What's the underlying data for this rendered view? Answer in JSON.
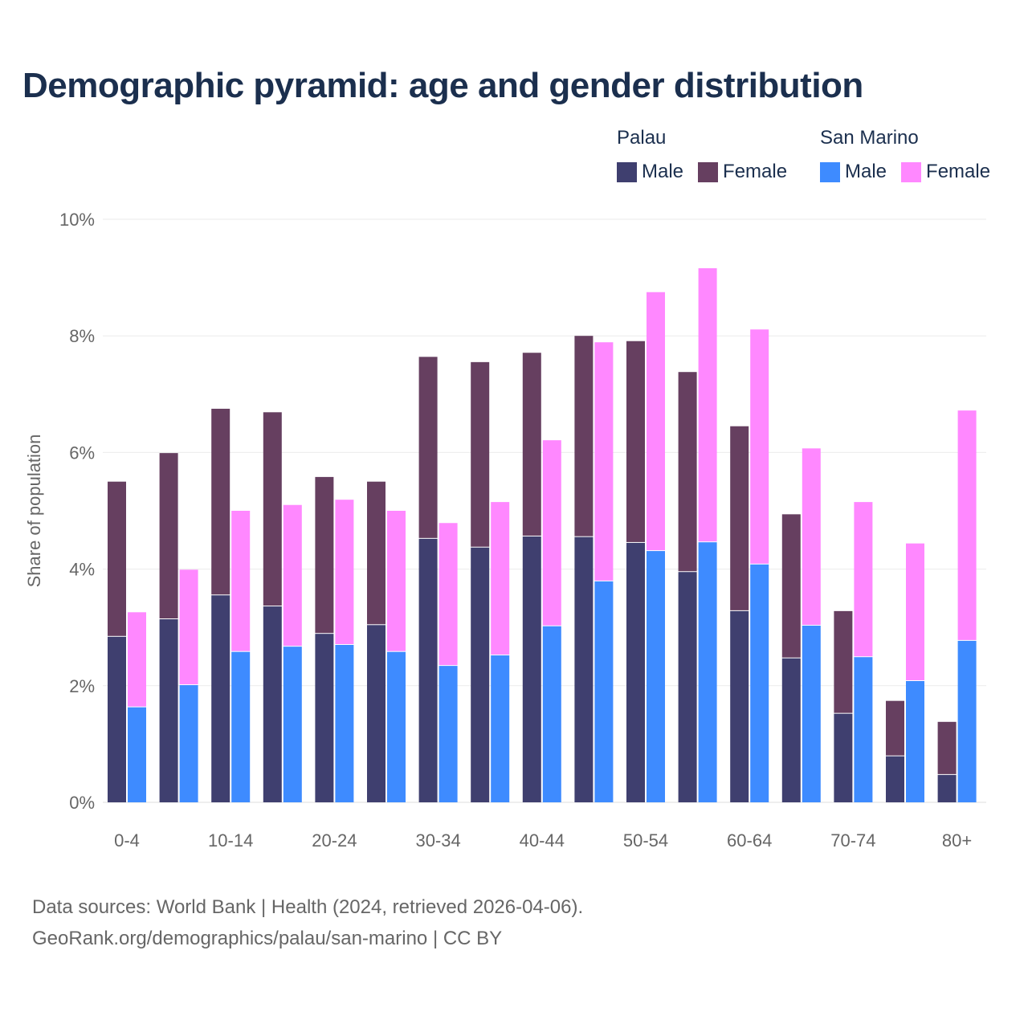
{
  "title": "Demographic pyramid: age and gender distribution",
  "legend": [
    {
      "country": "Palau",
      "items": [
        {
          "label": "Male",
          "color": "#3f3f6f"
        },
        {
          "label": "Female",
          "color": "#663f60"
        }
      ]
    },
    {
      "country": "San Marino",
      "items": [
        {
          "label": "Male",
          "color": "#3e8bff"
        },
        {
          "label": "Female",
          "color": "#ff88ff"
        }
      ]
    }
  ],
  "footer": {
    "line1": "Data sources: World Bank | Health (2024, retrieved 2026-04-06).",
    "line2": "GeoRank.org/demographics/palau/san-marino | CC BY"
  },
  "chart_data": {
    "type": "bar",
    "stacked": true,
    "ylabel": "Share of population",
    "ylim": [
      0,
      10
    ],
    "yticks": [
      0,
      2,
      4,
      6,
      8,
      10
    ],
    "ytick_labels": [
      "0%",
      "2%",
      "4%",
      "6%",
      "8%",
      "10%"
    ],
    "categories": [
      "0-4",
      "5-9",
      "10-14",
      "15-19",
      "20-24",
      "25-29",
      "30-34",
      "35-39",
      "40-44",
      "45-49",
      "50-54",
      "55-59",
      "60-64",
      "65-69",
      "70-74",
      "75-79",
      "80+"
    ],
    "xtick_labels": [
      "0-4",
      "",
      "10-14",
      "",
      "20-24",
      "",
      "30-34",
      "",
      "40-44",
      "",
      "50-54",
      "",
      "60-64",
      "",
      "70-74",
      "",
      "80+"
    ],
    "series": [
      {
        "name": "Palau Male",
        "color": "#3f3f6f",
        "stack": "Palau",
        "values": [
          2.84,
          3.14,
          3.55,
          3.36,
          2.89,
          3.04,
          4.52,
          4.37,
          4.56,
          4.55,
          4.45,
          3.95,
          3.28,
          2.47,
          1.52,
          0.79,
          0.47
        ]
      },
      {
        "name": "Palau Female",
        "color": "#663f60",
        "stack": "Palau",
        "values": [
          2.66,
          2.85,
          3.2,
          3.33,
          2.69,
          2.46,
          3.12,
          3.18,
          3.15,
          3.45,
          3.46,
          3.43,
          3.17,
          2.47,
          1.76,
          0.95,
          0.91
        ]
      },
      {
        "name": "San Marino Male",
        "color": "#3e8bff",
        "stack": "San Marino",
        "values": [
          1.63,
          2.01,
          2.58,
          2.67,
          2.7,
          2.58,
          2.34,
          2.52,
          3.02,
          3.79,
          4.31,
          4.46,
          4.08,
          3.03,
          2.49,
          2.08,
          2.77
        ]
      },
      {
        "name": "San Marino Female",
        "color": "#ff88ff",
        "stack": "San Marino",
        "values": [
          1.63,
          1.98,
          2.42,
          2.43,
          2.49,
          2.42,
          2.45,
          2.63,
          3.19,
          4.1,
          4.44,
          4.7,
          4.03,
          3.04,
          2.66,
          2.36,
          3.95
        ]
      }
    ],
    "grid": true,
    "legend_position": "top-right"
  }
}
